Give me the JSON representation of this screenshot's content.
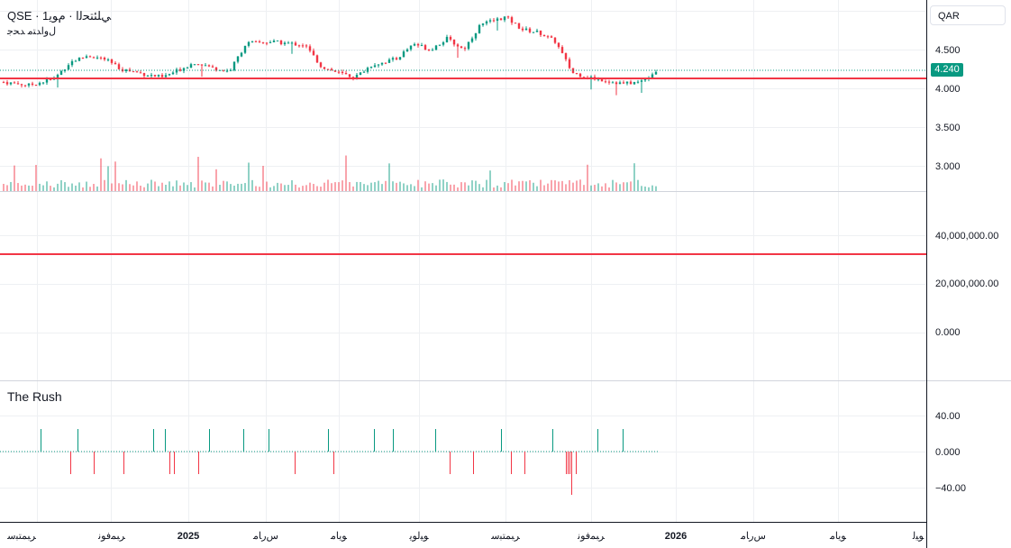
{
  "header": {
    "title_line": "QSE · ﻲﻠﺌﺘﺤﻟﺍ · ﻡﻮﻳ1",
    "subtitle": "ﻝﻭﺍﺪﺘﻣ ﺪﺤﺟ"
  },
  "currency_button": "QAR",
  "current_price": "4.240",
  "colors": {
    "up": "#089981",
    "down": "#f23645",
    "level_line": "#f23645",
    "grid": "#eef0f3",
    "price_badge": "#089981"
  },
  "price_axis": {
    "ticks": [
      "4.500",
      "4.000",
      "3.500",
      "3.000"
    ],
    "tick_values": [
      4.5,
      4.0,
      3.5,
      3.0
    ]
  },
  "volume_axis": {
    "ticks": [
      "40,000,000.00",
      "20,000,000.00",
      "0.000"
    ]
  },
  "indicator": {
    "title": "The Rush",
    "ticks": [
      "40.00",
      "0.000",
      "−40.00"
    ]
  },
  "time_axis": {
    "labels": [
      "ﺮﺒﻤﺘﺒﺳ",
      "ﺮﺒﻤﻓﻮﻧ",
      "2025",
      "ﺱﺭﺎﻣ",
      "ﻮﻳﺎﻣ",
      "ﻮﻴﻟﻮﻳ",
      "ﺮﺒﻤﺘﺒﺳ",
      "ﺮﺒﻤﻓﻮﻧ",
      "2026",
      "ﺱﺭﺎﻣ",
      "ﻮﻳﺎﻣ",
      "ﻮﻴﻟ"
    ]
  },
  "chart_data": {
    "type": "candlestick",
    "price_series_anchors": [
      [
        0,
        4.08
      ],
      [
        3,
        4.04
      ],
      [
        6,
        4.12
      ],
      [
        8,
        4.34
      ],
      [
        10,
        4.42
      ],
      [
        12,
        4.38
      ],
      [
        14,
        4.25
      ],
      [
        17,
        4.18
      ],
      [
        19,
        4.14
      ],
      [
        21,
        4.24
      ],
      [
        23,
        4.34
      ],
      [
        25,
        4.26
      ],
      [
        27,
        4.22
      ],
      [
        29,
        4.58
      ],
      [
        32,
        4.6
      ],
      [
        36,
        4.56
      ],
      [
        38,
        4.28
      ],
      [
        40,
        4.2
      ],
      [
        42,
        4.14
      ],
      [
        44,
        4.3
      ],
      [
        47,
        4.38
      ],
      [
        49,
        4.58
      ],
      [
        51,
        4.5
      ],
      [
        53,
        4.64
      ],
      [
        55,
        4.5
      ],
      [
        57,
        4.82
      ],
      [
        60,
        4.92
      ],
      [
        62,
        4.76
      ],
      [
        64,
        4.72
      ],
      [
        66,
        4.6
      ],
      [
        68,
        4.2
      ],
      [
        70,
        4.14
      ],
      [
        72,
        4.1
      ],
      [
        74,
        4.06
      ],
      [
        76,
        4.08
      ],
      [
        78,
        4.22
      ]
    ],
    "level_lines": {
      "price": 4.13,
      "volume": 32000000
    },
    "rush_signals": [
      [
        1,
        25
      ],
      [
        2,
        -25
      ],
      [
        3,
        25
      ],
      [
        4,
        -25
      ],
      [
        5,
        -25
      ],
      [
        6,
        25
      ],
      [
        7,
        25
      ],
      [
        7.5,
        -25
      ],
      [
        8,
        -25
      ],
      [
        9,
        -25
      ],
      [
        10,
        25
      ],
      [
        11,
        25
      ],
      [
        12,
        25
      ],
      [
        13,
        -25
      ],
      [
        14,
        25
      ],
      [
        15,
        -25
      ],
      [
        16,
        25
      ],
      [
        17,
        25
      ],
      [
        18,
        25
      ],
      [
        19,
        -25
      ],
      [
        20,
        -25
      ],
      [
        21,
        25
      ],
      [
        22,
        -25
      ],
      [
        23,
        -25
      ],
      [
        24,
        25
      ],
      [
        25,
        -25
      ],
      [
        26,
        -25
      ],
      [
        27,
        -25
      ],
      [
        28,
        -48
      ],
      [
        29,
        -25
      ],
      [
        30,
        25
      ],
      [
        31,
        25
      ]
    ]
  }
}
